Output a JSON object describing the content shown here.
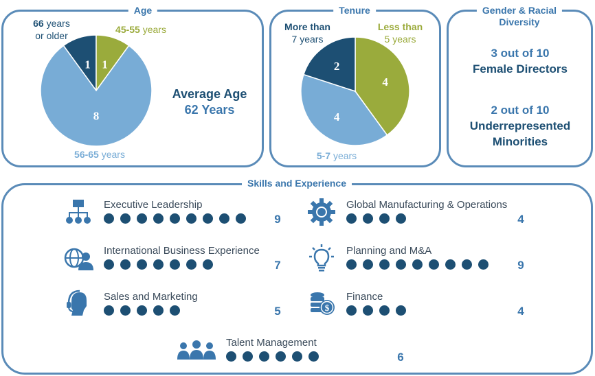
{
  "colors": {
    "dark": "#1d4f73",
    "green": "#9aab3c",
    "light": "#78acd6",
    "border": "#5a8bb8"
  },
  "age": {
    "title": "Age",
    "label_66_bold": "66",
    "label_66_rest1": "years",
    "label_66_rest2": "or older",
    "label_45_bold": "45-55",
    "label_45_rest": "years",
    "label_56_bold": "56-65",
    "label_56_rest": "years",
    "average_line1": "Average Age",
    "average_line2": "62 Years"
  },
  "tenure": {
    "title": "Tenure",
    "more_bold": "More than",
    "more_rest": "7 years",
    "less_bold": "Less than",
    "less_rest": "5 years",
    "mid_bold": "5-7",
    "mid_rest": "years"
  },
  "diversity": {
    "title_line1": "Gender & Racial",
    "title_line2": "Diversity",
    "female_line1": "3 out of 10",
    "female_line2": "Female Directors",
    "minor_line1": "2 out of 10",
    "minor_line2": "Underrepresented",
    "minor_line3": "Minorities"
  },
  "skills": {
    "title": "Skills and Experience",
    "items": [
      {
        "name": "Executive Leadership",
        "count": "9",
        "dots": 9,
        "icon": "org-chart-icon"
      },
      {
        "name": "International Business Experience",
        "count": "7",
        "dots": 7,
        "icon": "globe-person-icon"
      },
      {
        "name": "Sales and Marketing",
        "count": "5",
        "dots": 5,
        "icon": "headset-person-icon"
      },
      {
        "name": "Talent Management",
        "count": "6",
        "dots": 6,
        "icon": "people-group-icon"
      },
      {
        "name": "Global Manufacturing & Operations",
        "count": "4",
        "dots": 4,
        "icon": "gear-globe-icon"
      },
      {
        "name": "Planning and M&A",
        "count": "9",
        "dots": 9,
        "icon": "lightbulb-icon"
      },
      {
        "name": "Finance",
        "count": "4",
        "dots": 4,
        "icon": "coins-dollar-icon"
      }
    ]
  },
  "chart_data": [
    {
      "type": "pie",
      "title": "Age",
      "categories": [
        "66 years or older",
        "45-55 years",
        "56-65 years"
      ],
      "values": [
        1,
        1,
        8
      ],
      "colors": [
        "#1d4f73",
        "#9aab3c",
        "#78acd6"
      ]
    },
    {
      "type": "pie",
      "title": "Tenure",
      "categories": [
        "Less than 5 years",
        "5-7 years",
        "More than 7 years"
      ],
      "values": [
        4,
        4,
        2
      ],
      "colors": [
        "#9aab3c",
        "#78acd6",
        "#1d4f73"
      ]
    }
  ]
}
